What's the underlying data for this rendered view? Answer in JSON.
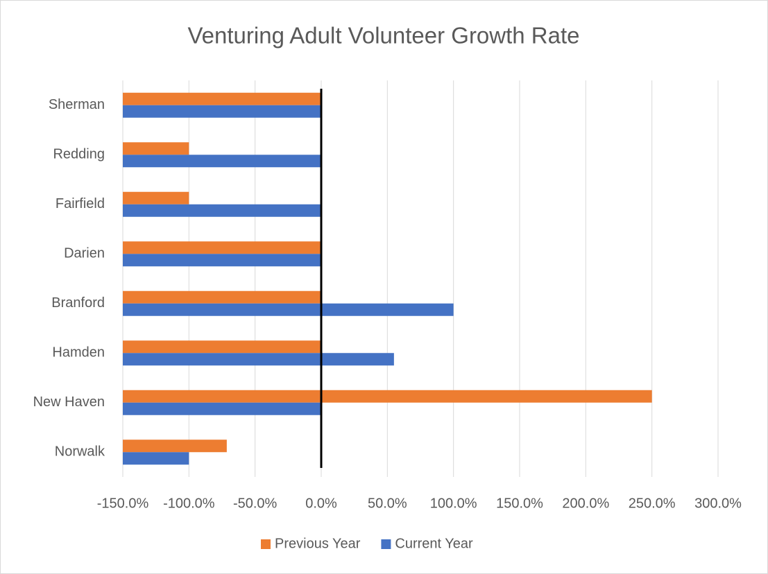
{
  "chart_data": {
    "type": "bar",
    "orientation": "horizontal",
    "title": "Venturing Adult Volunteer Growth Rate",
    "categories": [
      "Sherman",
      "Redding",
      "Fairfield",
      "Darien",
      "Branford",
      "Hamden",
      "New Haven",
      "Norwalk"
    ],
    "series": [
      {
        "name": "Previous Year",
        "color": "#ed7d31",
        "values": [
          0,
          -100,
          -100,
          0,
          0,
          0,
          250,
          -71.4
        ]
      },
      {
        "name": "Current Year",
        "color": "#4472c4",
        "values": [
          0,
          0,
          0,
          0,
          100,
          55,
          0,
          -100
        ]
      }
    ],
    "xlim": [
      -150,
      300
    ],
    "xticks": [
      {
        "value": -150,
        "label": "-150.0%"
      },
      {
        "value": -100,
        "label": "-100.0%"
      },
      {
        "value": -50,
        "label": "-50.0%"
      },
      {
        "value": 0,
        "label": "0.0%"
      },
      {
        "value": 50,
        "label": "50.0%"
      },
      {
        "value": 100,
        "label": "100.0%"
      },
      {
        "value": 150,
        "label": "150.0%"
      },
      {
        "value": 200,
        "label": "200.0%"
      },
      {
        "value": 250,
        "label": "250.0%"
      },
      {
        "value": 300,
        "label": "300.0%"
      }
    ],
    "grid": true,
    "legend": "bottom"
  }
}
